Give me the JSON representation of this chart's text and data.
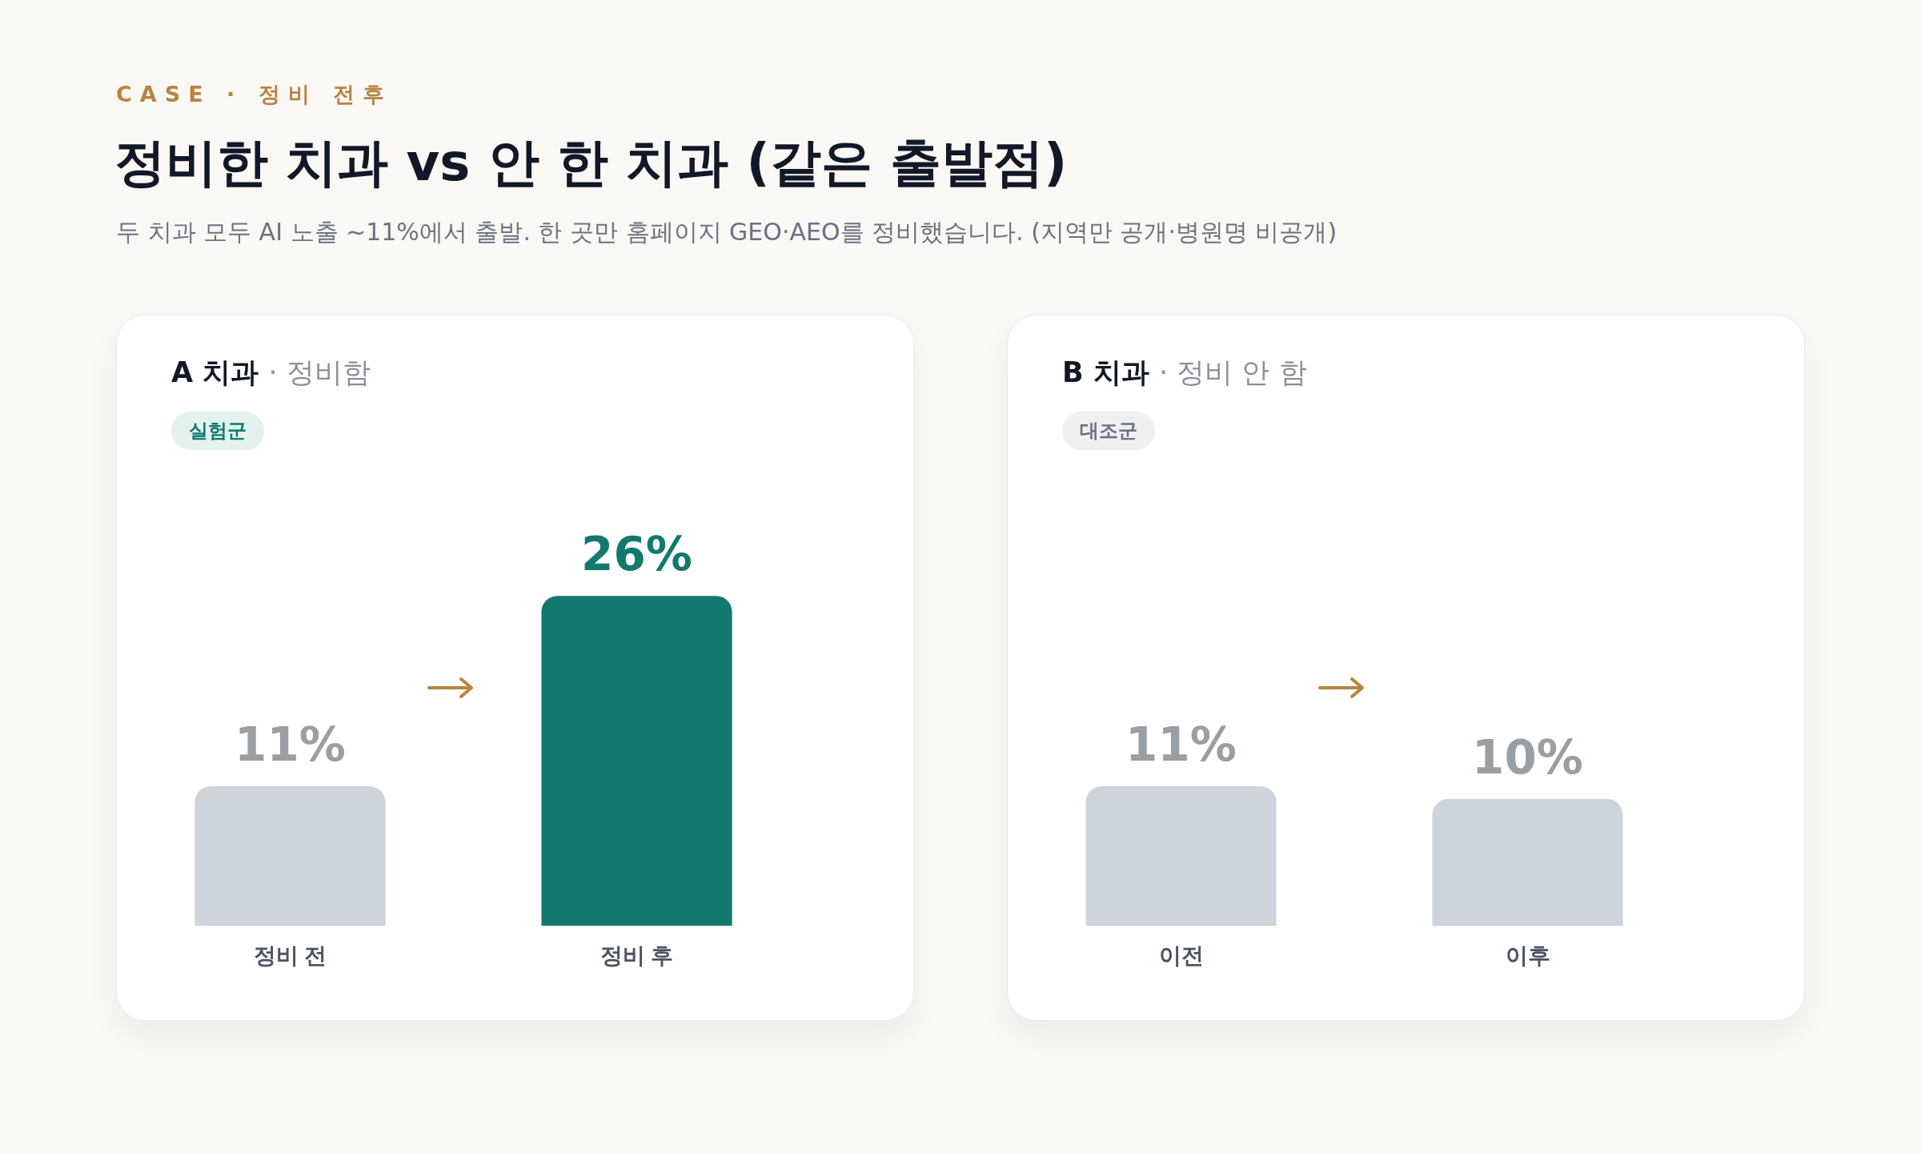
{
  "chart_data": [
    {
      "type": "other",
      "title": "정비한 치과 vs 안 한 치과 (같은 출발점)",
      "subtitle": "두 치과 모두 AI 노출 ~11%에서 출발. 한 곳만 홈페이지 GEO·AEO를 정비했습니다. (지역만 공개·병원명 비공개)",
      "annotations": [
        "CASE · 정비 전후"
      ]
    },
    {
      "type": "bar",
      "title": "A 치과",
      "subtitle": "· 정비함",
      "annotations": [
        "실험군"
      ],
      "categories": [
        "정비 전",
        "정비 후"
      ],
      "values": [
        11,
        26
      ],
      "value_labels": [
        "11%",
        "26%"
      ],
      "colors": [
        "#cdd4db",
        "#12796e"
      ],
      "grid": false,
      "legend": false,
      "tick_labels": "x"
    },
    {
      "type": "bar",
      "title": "B 치과",
      "subtitle": "· 정비 안 함",
      "annotations": [
        "대조군"
      ],
      "categories": [
        "이전",
        "이후"
      ],
      "values": [
        11,
        10
      ],
      "value_labels": [
        "11%",
        "10%"
      ],
      "colors": [
        "#cdd4db",
        "#cdd4db"
      ],
      "grid": false,
      "legend": false,
      "tick_labels": "x"
    }
  ]
}
